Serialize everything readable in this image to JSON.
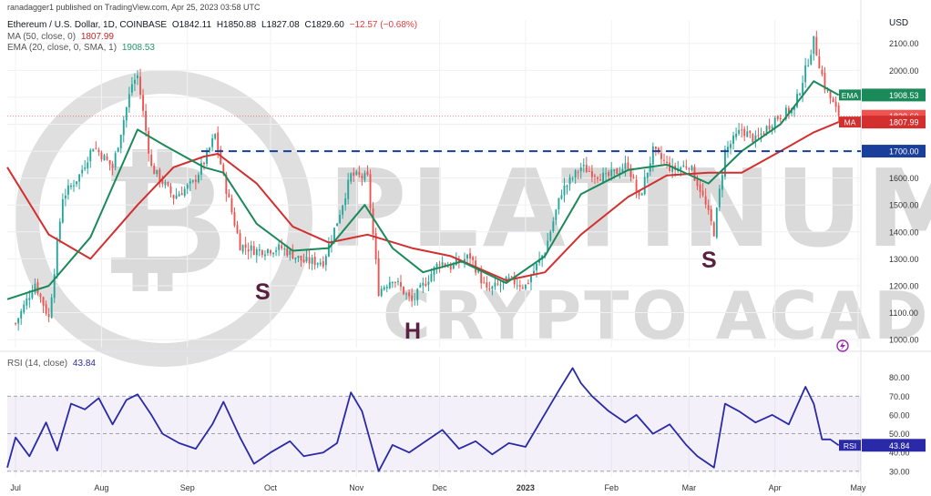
{
  "header": {
    "publisher": "ranadagger1 published on TradingView.com, Apr 25, 2023 03:58 UTC",
    "symbol": "Ethereum / U.S. Dollar, 1D, COINBASE",
    "ohlc": {
      "open": "O1842.11",
      "high": "H1850.88",
      "low": "L1827.08",
      "close": "C1829.60",
      "change": "−12.57 (−0.68%)"
    },
    "ma_legend": {
      "label": "MA (50, close, 0)",
      "value": "1807.99"
    },
    "ema_legend": {
      "label": "EMA (20, close, 0, SMA, 1)",
      "value": "1908.53"
    },
    "rsi_legend": {
      "label": "RSI (14, close)",
      "value": "43.84"
    }
  },
  "watermark": {
    "line1": "PLATINUM",
    "line2": "CRYPTO ACADEMY"
  },
  "pattern_labels": {
    "left_shoulder": "S",
    "head": "H",
    "right_shoulder": "S"
  },
  "colors": {
    "up": "#26a69a",
    "down": "#ef5350",
    "ema": "#1b8a5a",
    "ma": "#d32f2f",
    "rsi": "#2a2aa8",
    "neckline": "#1a3f9a",
    "label": "#5a2040"
  },
  "chart_data": [
    {
      "type": "candlestick",
      "title": "Ethereum / U.S. Dollar, 1D, COINBASE",
      "y_unit": "USD",
      "yticks": [
        "2100.00",
        "2000.00",
        "1900.00",
        "1800.00",
        "1700.00",
        "1600.00",
        "1500.00",
        "1400.00",
        "1300.00",
        "1200.00",
        "1100.00",
        "1000.00"
      ],
      "ylim": [
        970,
        2160
      ],
      "xticks": [
        "Jul",
        "Aug",
        "Sep",
        "Oct",
        "Nov",
        "Dec",
        "2023",
        "Feb",
        "Mar",
        "Apr",
        "May"
      ],
      "x_range": [
        "2022-06-28",
        "2023-05-02"
      ],
      "close_series": {
        "x": [
          "2022-07-01",
          "2022-07-08",
          "2022-07-13",
          "2022-07-18",
          "2022-07-24",
          "2022-07-29",
          "2022-08-05",
          "2022-08-12",
          "2022-08-14",
          "2022-08-19",
          "2022-08-27",
          "2022-09-03",
          "2022-09-07",
          "2022-09-11",
          "2022-09-14",
          "2022-09-20",
          "2022-09-26",
          "2022-10-05",
          "2022-10-13",
          "2022-10-20",
          "2022-10-25",
          "2022-10-30",
          "2022-11-05",
          "2022-11-09",
          "2022-11-14",
          "2022-11-21",
          "2022-11-25",
          "2022-12-01",
          "2022-12-05",
          "2022-12-12",
          "2022-12-18",
          "2022-12-26",
          "2023-01-01",
          "2023-01-08",
          "2023-01-14",
          "2023-01-21",
          "2023-01-30",
          "2023-02-07",
          "2023-02-11",
          "2023-02-16",
          "2023-02-23",
          "2023-03-01",
          "2023-03-05",
          "2023-03-10",
          "2023-03-14",
          "2023-03-20",
          "2023-03-25",
          "2023-04-01",
          "2023-04-08",
          "2023-04-12",
          "2023-04-15",
          "2023-04-19",
          "2023-04-24"
        ],
        "values": [
          1060,
          1210,
          1080,
          1530,
          1610,
          1720,
          1640,
          1950,
          1980,
          1640,
          1530,
          1580,
          1660,
          1760,
          1600,
          1350,
          1330,
          1340,
          1290,
          1290,
          1440,
          1610,
          1600,
          1180,
          1230,
          1140,
          1200,
          1290,
          1270,
          1310,
          1180,
          1220,
          1200,
          1330,
          1550,
          1640,
          1600,
          1650,
          1520,
          1700,
          1630,
          1650,
          1560,
          1400,
          1700,
          1780,
          1740,
          1820,
          1860,
          2000,
          2110,
          1940,
          1829.6
        ]
      },
      "ema_20": {
        "x": [
          "2022-06-28",
          "2022-07-13",
          "2022-07-28",
          "2022-08-14",
          "2022-08-24",
          "2022-09-07",
          "2022-09-14",
          "2022-09-26",
          "2022-10-09",
          "2022-10-22",
          "2022-11-04",
          "2022-11-14",
          "2022-11-25",
          "2022-12-09",
          "2022-12-25",
          "2023-01-08",
          "2023-01-21",
          "2023-02-07",
          "2023-02-21",
          "2023-03-08",
          "2023-03-20",
          "2023-04-03",
          "2023-04-15",
          "2023-04-24"
        ],
        "values": [
          1150,
          1200,
          1380,
          1780,
          1720,
          1640,
          1620,
          1430,
          1330,
          1340,
          1500,
          1340,
          1250,
          1290,
          1210,
          1310,
          1540,
          1630,
          1650,
          1580,
          1700,
          1800,
          1960,
          1908.53
        ]
      },
      "ma_50": {
        "x": [
          "2022-06-28",
          "2022-07-13",
          "2022-07-28",
          "2022-08-14",
          "2022-08-27",
          "2022-09-07",
          "2022-09-12",
          "2022-09-26",
          "2022-10-09",
          "2022-10-22",
          "2022-11-05",
          "2022-11-21",
          "2022-12-05",
          "2022-12-25",
          "2023-01-08",
          "2023-01-21",
          "2023-02-07",
          "2023-02-21",
          "2023-03-08",
          "2023-03-20",
          "2023-04-03",
          "2023-04-15",
          "2023-04-24"
        ],
        "values": [
          1640,
          1390,
          1300,
          1500,
          1640,
          1680,
          1690,
          1580,
          1420,
          1360,
          1390,
          1340,
          1310,
          1220,
          1250,
          1390,
          1530,
          1610,
          1620,
          1620,
          1700,
          1770,
          1807.99
        ]
      },
      "levels": {
        "neckline": 1700,
        "last_close": 1829.6
      },
      "value_tags": {
        "neckline": "1700.00",
        "ema": "1908.53",
        "close": "1829.60",
        "ma": "1807.99",
        "ema_name": "EMA",
        "ma_name": "MA"
      },
      "annotations": [
        "S",
        "H",
        "S"
      ]
    },
    {
      "type": "line",
      "title": "RSI (14, close)",
      "yticks": [
        "80.00",
        "70.00",
        "60.00",
        "50.00",
        "40.00",
        "30.00"
      ],
      "ylim": [
        27,
        91
      ],
      "band": [
        30,
        70
      ],
      "midline": 50,
      "x": [
        "2022-06-28",
        "2022-07-01",
        "2022-07-06",
        "2022-07-12",
        "2022-07-16",
        "2022-07-21",
        "2022-07-26",
        "2022-07-31",
        "2022-08-05",
        "2022-08-10",
        "2022-08-14",
        "2022-08-19",
        "2022-08-23",
        "2022-08-29",
        "2022-09-04",
        "2022-09-10",
        "2022-09-14",
        "2022-09-20",
        "2022-09-25",
        "2022-10-01",
        "2022-10-08",
        "2022-10-13",
        "2022-10-20",
        "2022-10-25",
        "2022-10-30",
        "2022-11-03",
        "2022-11-09",
        "2022-11-14",
        "2022-11-20",
        "2022-11-26",
        "2022-12-02",
        "2022-12-08",
        "2022-12-14",
        "2022-12-20",
        "2022-12-26",
        "2023-01-01",
        "2023-01-07",
        "2023-01-13",
        "2023-01-18",
        "2023-01-21",
        "2023-01-25",
        "2023-01-31",
        "2023-02-06",
        "2023-02-10",
        "2023-02-16",
        "2023-02-22",
        "2023-02-28",
        "2023-03-04",
        "2023-03-10",
        "2023-03-14",
        "2023-03-19",
        "2023-03-25",
        "2023-03-31",
        "2023-04-06",
        "2023-04-12",
        "2023-04-15",
        "2023-04-18",
        "2023-04-21",
        "2023-04-24"
      ],
      "values": [
        32,
        48,
        38,
        56,
        41,
        66,
        63,
        69,
        55,
        68,
        71,
        60,
        50,
        45,
        42,
        55,
        67,
        48,
        34,
        40,
        46,
        38,
        40,
        45,
        72,
        62,
        30,
        44,
        40,
        46,
        52,
        42,
        46,
        39,
        45,
        43,
        58,
        73,
        85,
        77,
        70,
        62,
        56,
        60,
        50,
        55,
        44,
        38,
        32,
        66,
        62,
        56,
        60,
        55,
        75,
        66,
        47,
        47,
        43.84
      ]
    }
  ]
}
